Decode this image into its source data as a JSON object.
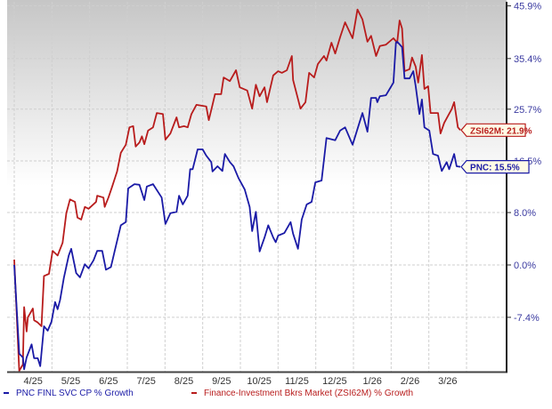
{
  "colors": {
    "pnc": "#1a1aa6",
    "zsi": "#b81c1c",
    "tick_text": "#3a3aa0"
  },
  "chart_data": {
    "type": "line",
    "title": "",
    "xlabel": "",
    "ylabel": "",
    "y_scale": "log (1 + growth)",
    "x_range": [
      "2025-04-01",
      "2026-04-01"
    ],
    "ylim": [
      -14.7,
      45.9
    ],
    "grid": true,
    "legend_position": "bottom",
    "x_ticks": [
      "4/25",
      "5/25",
      "6/25",
      "7/25",
      "8/25",
      "9/25",
      "10/25",
      "11/25",
      "12/25",
      "1/26",
      "2/26",
      "3/26"
    ],
    "y_ticks": [
      {
        "value": 45.9,
        "label": "45.9%"
      },
      {
        "value": 35.4,
        "label": "35.4%"
      },
      {
        "value": 25.7,
        "label": "25.7%"
      },
      {
        "value": 16.5,
        "label": "16.5%"
      },
      {
        "value": 8.0,
        "label": "8.0%"
      },
      {
        "value": 0.0,
        "label": "0.0%"
      },
      {
        "value": -7.4,
        "label": "-7.4%"
      }
    ],
    "series": [
      {
        "name": "Finance-Investment Bkrs Market (ZSI62M) % Growth",
        "end_label": "ZSI62M: 21.9%",
        "color": "#b81c1c",
        "points": [
          [
            "2025-04-01",
            0.8
          ],
          [
            "2025-04-05",
            -14.4
          ],
          [
            "2025-04-08",
            -13.6
          ],
          [
            "2025-04-09",
            -6.0
          ],
          [
            "2025-04-11",
            -9.3
          ],
          [
            "2025-04-12",
            -7.4
          ],
          [
            "2025-04-16",
            -6.2
          ],
          [
            "2025-04-17",
            -7.8
          ],
          [
            "2025-04-20",
            -8.1
          ],
          [
            "2025-04-23",
            -8.6
          ],
          [
            "2025-04-25",
            -1.6
          ],
          [
            "2025-04-29",
            -1.3
          ],
          [
            "2025-05-02",
            2.1
          ],
          [
            "2025-05-06",
            1.4
          ],
          [
            "2025-05-10",
            3.3
          ],
          [
            "2025-05-13",
            7.9
          ],
          [
            "2025-05-16",
            10.1
          ],
          [
            "2025-05-20",
            9.7
          ],
          [
            "2025-05-22",
            7.2
          ],
          [
            "2025-05-25",
            6.9
          ],
          [
            "2025-05-28",
            8.9
          ],
          [
            "2025-05-31",
            8.6
          ],
          [
            "2025-06-06",
            9.7
          ],
          [
            "2025-06-07",
            10.7
          ],
          [
            "2025-06-12",
            10.4
          ],
          [
            "2025-06-13",
            8.9
          ],
          [
            "2025-06-16",
            10.4
          ],
          [
            "2025-06-19",
            12.2
          ],
          [
            "2025-06-23",
            14.7
          ],
          [
            "2025-06-26",
            17.9
          ],
          [
            "2025-06-30",
            19.3
          ],
          [
            "2025-07-03",
            22.4
          ],
          [
            "2025-07-06",
            22.6
          ],
          [
            "2025-07-08",
            19.0
          ],
          [
            "2025-07-11",
            19.7
          ],
          [
            "2025-07-13",
            20.8
          ],
          [
            "2025-07-15",
            19.4
          ],
          [
            "2025-07-18",
            21.8
          ],
          [
            "2025-07-22",
            22.4
          ],
          [
            "2025-07-25",
            25.0
          ],
          [
            "2025-07-30",
            24.8
          ],
          [
            "2025-08-01",
            20.2
          ],
          [
            "2025-08-05",
            21.3
          ],
          [
            "2025-08-10",
            24.2
          ],
          [
            "2025-08-12",
            22.4
          ],
          [
            "2025-08-16",
            22.6
          ],
          [
            "2025-08-19",
            22.4
          ],
          [
            "2025-08-22",
            24.8
          ],
          [
            "2025-08-26",
            26.5
          ],
          [
            "2025-09-03",
            26.2
          ],
          [
            "2025-09-05",
            23.7
          ],
          [
            "2025-09-08",
            26.5
          ],
          [
            "2025-09-10",
            28.5
          ],
          [
            "2025-09-15",
            28.5
          ],
          [
            "2025-09-17",
            31.7
          ],
          [
            "2025-09-22",
            31.0
          ],
          [
            "2025-09-27",
            33.1
          ],
          [
            "2025-09-30",
            29.8
          ],
          [
            "2025-10-06",
            29.2
          ],
          [
            "2025-10-10",
            25.8
          ],
          [
            "2025-10-13",
            30.3
          ],
          [
            "2025-10-16",
            28.1
          ],
          [
            "2025-10-20",
            29.8
          ],
          [
            "2025-10-22",
            27.0
          ],
          [
            "2025-10-27",
            32.1
          ],
          [
            "2025-10-31",
            32.9
          ],
          [
            "2025-11-03",
            32.6
          ],
          [
            "2025-11-07",
            33.1
          ],
          [
            "2025-11-11",
            35.9
          ],
          [
            "2025-11-12",
            31.2
          ],
          [
            "2025-11-18",
            25.8
          ],
          [
            "2025-11-22",
            27.0
          ],
          [
            "2025-11-25",
            32.6
          ],
          [
            "2025-11-29",
            31.7
          ],
          [
            "2025-12-02",
            34.3
          ],
          [
            "2025-12-07",
            35.9
          ],
          [
            "2025-12-09",
            35.0
          ],
          [
            "2025-12-13",
            38.6
          ],
          [
            "2025-12-16",
            36.4
          ],
          [
            "2025-12-20",
            39.7
          ],
          [
            "2025-12-24",
            42.8
          ],
          [
            "2025-12-30",
            39.5
          ],
          [
            "2026-01-03",
            45.5
          ],
          [
            "2026-01-07",
            43.4
          ],
          [
            "2026-01-11",
            38.8
          ],
          [
            "2026-01-14",
            40.0
          ],
          [
            "2026-01-18",
            35.9
          ],
          [
            "2026-01-21",
            37.9
          ],
          [
            "2026-01-26",
            38.2
          ],
          [
            "2026-02-01",
            39.5
          ],
          [
            "2026-02-04",
            38.6
          ],
          [
            "2026-02-06",
            43.2
          ],
          [
            "2026-02-08",
            41.5
          ],
          [
            "2026-02-10",
            32.9
          ],
          [
            "2026-02-14",
            33.3
          ],
          [
            "2026-02-16",
            35.6
          ],
          [
            "2026-02-19",
            33.8
          ],
          [
            "2026-02-21",
            30.7
          ],
          [
            "2026-02-24",
            36.1
          ],
          [
            "2026-02-26",
            29.5
          ],
          [
            "2026-03-01",
            30.0
          ],
          [
            "2026-03-03",
            25.0
          ],
          [
            "2026-03-09",
            25.0
          ],
          [
            "2026-03-11",
            21.3
          ],
          [
            "2026-03-14",
            23.2
          ],
          [
            "2026-03-20",
            25.7
          ],
          [
            "2026-03-22",
            27.0
          ],
          [
            "2026-03-25",
            22.4
          ],
          [
            "2026-03-27",
            21.9
          ]
        ]
      },
      {
        "name": "PNC FINL SVC CP % Growth",
        "end_label": "PNC: 15.5%",
        "color": "#1a1aa6",
        "points": [
          [
            "2025-04-01",
            0.0
          ],
          [
            "2025-04-05",
            -12.2
          ],
          [
            "2025-04-08",
            -12.7
          ],
          [
            "2025-04-09",
            -14.2
          ],
          [
            "2025-04-11",
            -12.7
          ],
          [
            "2025-04-15",
            -11.0
          ],
          [
            "2025-04-17",
            -12.8
          ],
          [
            "2025-04-20",
            -12.8
          ],
          [
            "2025-04-22",
            -13.8
          ],
          [
            "2025-04-25",
            -8.6
          ],
          [
            "2025-04-28",
            -9.2
          ],
          [
            "2025-05-01",
            -8.0
          ],
          [
            "2025-05-04",
            -5.3
          ],
          [
            "2025-05-06",
            -6.3
          ],
          [
            "2025-05-08",
            -5.0
          ],
          [
            "2025-05-11",
            -1.9
          ],
          [
            "2025-05-15",
            1.4
          ],
          [
            "2025-05-17",
            2.4
          ],
          [
            "2025-05-21",
            -1.2
          ],
          [
            "2025-05-24",
            -1.8
          ],
          [
            "2025-05-28",
            0.1
          ],
          [
            "2025-05-31",
            -0.5
          ],
          [
            "2025-06-04",
            0.7
          ],
          [
            "2025-06-07",
            2.1
          ],
          [
            "2025-06-11",
            2.1
          ],
          [
            "2025-06-14",
            -0.7
          ],
          [
            "2025-06-18",
            -0.3
          ],
          [
            "2025-06-21",
            2.0
          ],
          [
            "2025-06-26",
            6.0
          ],
          [
            "2025-06-30",
            6.5
          ],
          [
            "2025-07-02",
            11.9
          ],
          [
            "2025-07-07",
            12.6
          ],
          [
            "2025-07-11",
            12.5
          ],
          [
            "2025-07-15",
            10.0
          ],
          [
            "2025-07-17",
            12.2
          ],
          [
            "2025-07-22",
            12.6
          ],
          [
            "2025-07-29",
            10.4
          ],
          [
            "2025-08-01",
            6.2
          ],
          [
            "2025-08-05",
            7.9
          ],
          [
            "2025-08-10",
            8.1
          ],
          [
            "2025-08-12",
            10.7
          ],
          [
            "2025-08-15",
            9.3
          ],
          [
            "2025-08-19",
            10.7
          ],
          [
            "2025-08-21",
            15.1
          ],
          [
            "2025-08-23",
            15.1
          ],
          [
            "2025-08-27",
            18.5
          ],
          [
            "2025-08-31",
            18.5
          ],
          [
            "2025-09-03",
            17.4
          ],
          [
            "2025-09-07",
            16.3
          ],
          [
            "2025-09-08",
            14.7
          ],
          [
            "2025-09-12",
            15.6
          ],
          [
            "2025-09-16",
            14.8
          ],
          [
            "2025-09-18",
            17.7
          ],
          [
            "2025-09-22",
            16.3
          ],
          [
            "2025-09-25",
            15.6
          ],
          [
            "2025-09-29",
            13.6
          ],
          [
            "2025-10-04",
            11.7
          ],
          [
            "2025-10-08",
            8.9
          ],
          [
            "2025-10-10",
            5.1
          ],
          [
            "2025-10-13",
            8.1
          ],
          [
            "2025-10-16",
            2.0
          ],
          [
            "2025-10-20",
            4.1
          ],
          [
            "2025-10-23",
            6.0
          ],
          [
            "2025-10-27",
            4.1
          ],
          [
            "2025-10-29",
            3.4
          ],
          [
            "2025-10-31",
            4.4
          ],
          [
            "2025-11-05",
            4.8
          ],
          [
            "2025-11-10",
            6.5
          ],
          [
            "2025-11-12",
            4.7
          ],
          [
            "2025-11-16",
            2.4
          ],
          [
            "2025-11-19",
            6.9
          ],
          [
            "2025-11-23",
            9.3
          ],
          [
            "2025-11-27",
            9.7
          ],
          [
            "2025-11-30",
            12.9
          ],
          [
            "2025-12-05",
            13.2
          ],
          [
            "2025-12-09",
            20.5
          ],
          [
            "2025-12-16",
            20.1
          ],
          [
            "2025-12-20",
            21.8
          ],
          [
            "2025-12-24",
            22.4
          ],
          [
            "2025-12-30",
            19.3
          ],
          [
            "2026-01-07",
            25.0
          ],
          [
            "2026-01-11",
            21.6
          ],
          [
            "2026-01-14",
            27.8
          ],
          [
            "2026-01-18",
            27.8
          ],
          [
            "2026-01-19",
            27.0
          ],
          [
            "2026-01-21",
            28.1
          ],
          [
            "2026-01-26",
            28.3
          ],
          [
            "2026-01-29",
            29.5
          ],
          [
            "2026-02-01",
            30.7
          ],
          [
            "2026-02-03",
            38.6
          ],
          [
            "2026-02-04",
            38.8
          ],
          [
            "2026-02-08",
            37.7
          ],
          [
            "2026-02-10",
            31.5
          ],
          [
            "2026-02-14",
            31.5
          ],
          [
            "2026-02-17",
            32.9
          ],
          [
            "2026-02-19",
            30.0
          ],
          [
            "2026-02-22",
            24.8
          ],
          [
            "2026-02-24",
            27.5
          ],
          [
            "2026-02-26",
            22.4
          ],
          [
            "2026-03-02",
            21.8
          ],
          [
            "2026-03-05",
            17.7
          ],
          [
            "2026-03-09",
            17.4
          ],
          [
            "2026-03-12",
            14.8
          ],
          [
            "2026-03-16",
            16.3
          ],
          [
            "2026-03-18",
            15.1
          ],
          [
            "2026-03-22",
            17.7
          ],
          [
            "2026-03-24",
            15.6
          ],
          [
            "2026-03-27",
            15.5
          ]
        ]
      }
    ]
  },
  "legend": {
    "pnc": "PNC FINL SVC CP % Growth",
    "zsi": "Finance-Investment Bkrs Market (ZSI62M) % Growth"
  }
}
